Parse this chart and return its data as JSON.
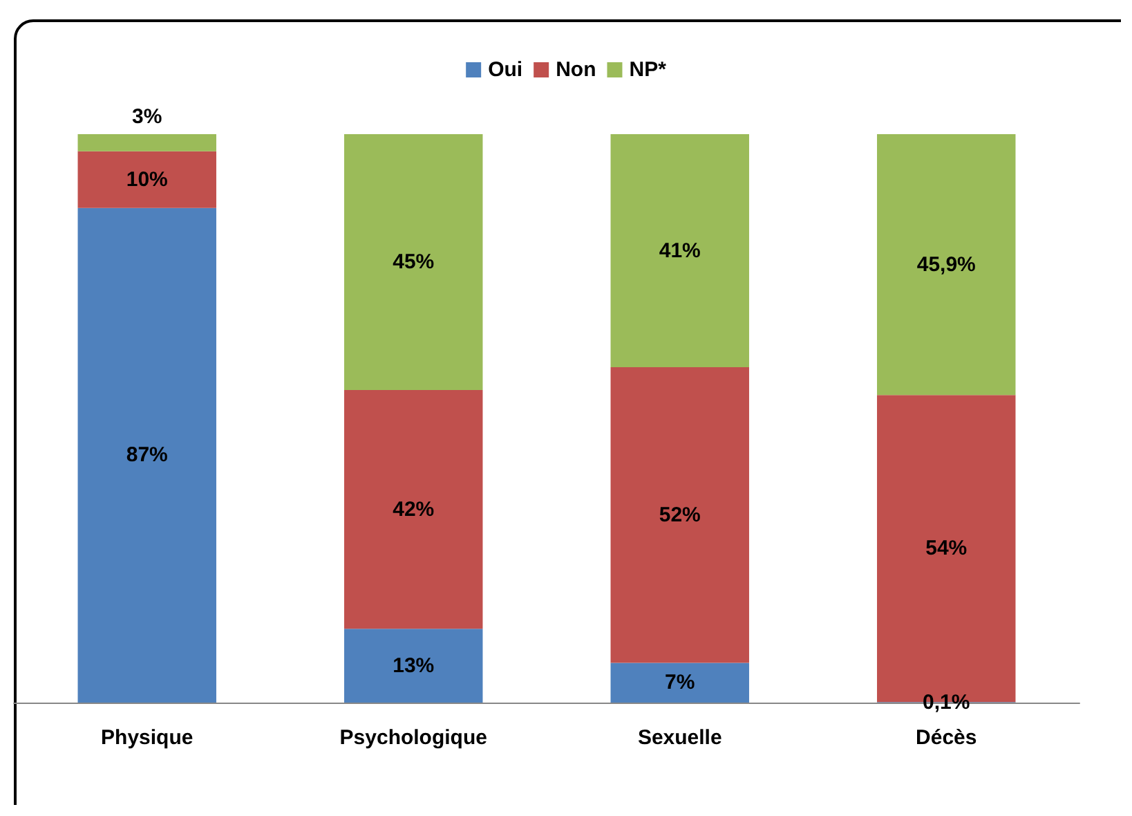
{
  "chart_data": {
    "type": "bar",
    "stacked": true,
    "legend": "top",
    "categories": [
      "Physique",
      "Psychologique",
      "Sexuelle",
      "Décès"
    ],
    "series": [
      {
        "name": "Oui",
        "color": "#4f81bd",
        "values": [
          87,
          13,
          7,
          0.1
        ],
        "value_labels": [
          "87%",
          "13%",
          "7%",
          "0,1%"
        ]
      },
      {
        "name": "Non",
        "color": "#c0504d",
        "values": [
          10,
          42,
          52,
          54
        ],
        "value_labels": [
          "10%",
          "42%",
          "52%",
          "54%"
        ]
      },
      {
        "name": "NP*",
        "color": "#9bbb59",
        "values": [
          3,
          45,
          41,
          45.9
        ],
        "value_labels": [
          "3%",
          "45%",
          "41%",
          "45,9%"
        ]
      }
    ]
  }
}
